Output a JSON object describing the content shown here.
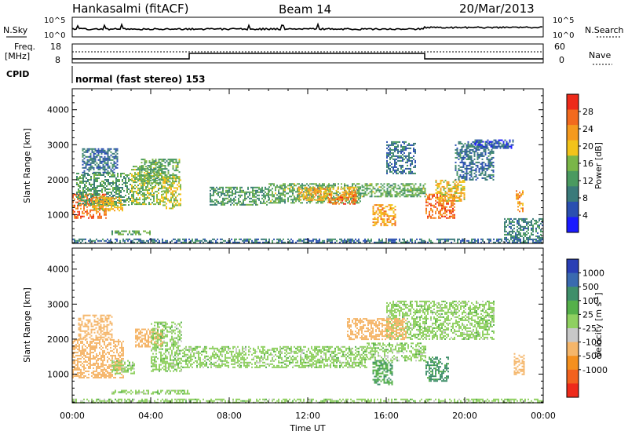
{
  "header": {
    "station": "Hankasalmi (fitACF)",
    "beam": "Beam 14",
    "date": "20/Mar/2013"
  },
  "noise_panel": {
    "left_label": "N.Sky",
    "left_ticks": [
      "10^5",
      "10^0"
    ],
    "right_label": "N.Search",
    "right_ticks": [
      "10^5",
      "10^0"
    ]
  },
  "freq_panel": {
    "left_label_line1": "Freq.",
    "left_label_line2": "[MHz]",
    "left_ticks": [
      "18",
      "8"
    ],
    "right_label": "Nave",
    "right_ticks": [
      "60",
      "0"
    ]
  },
  "cpid": {
    "label": "CPID",
    "mode": "normal (fast stereo) 153"
  },
  "power_colorbar": {
    "label": "Power [dB]",
    "ticks": [
      "4",
      "8",
      "12",
      "16",
      "20",
      "24",
      "28"
    ],
    "colors": [
      "#1a1aff",
      "#2a4fb0",
      "#3a7a7a",
      "#4a9a60",
      "#7ab648",
      "#f2c31a",
      "#f59a1e",
      "#f26a1e",
      "#ee2a1a"
    ]
  },
  "velocity_colorbar": {
    "label_main": "Velocity  [m s",
    "label_sup": "-1",
    "label_end": "]",
    "ticks": [
      "1000",
      "500",
      "100",
      "25",
      "-25",
      "-100",
      "-500",
      "-1000"
    ],
    "colors": [
      "#2a3fb5",
      "#3a6ab0",
      "#3f8f6a",
      "#55b04a",
      "#8fd060",
      "#c8c8c8",
      "#f5b66a",
      "#f5901e",
      "#f2621e",
      "#ee2a1a"
    ]
  },
  "y_axis": {
    "label": "Slant Range [km]",
    "ticks": [
      "1000",
      "2000",
      "3000",
      "4000"
    ]
  },
  "x_axis": {
    "label": "Time UT",
    "ticks": [
      "00:00",
      "04:00",
      "08:00",
      "12:00",
      "16:00",
      "20:00",
      "00:00"
    ]
  },
  "chart_data": [
    {
      "type": "heatmap",
      "title": "Power [dB]",
      "xlabel": "Time UT",
      "ylabel": "Slant Range [km]",
      "xlim": [
        0,
        24
      ],
      "ylim": [
        180,
        4600
      ],
      "color_scale": [
        0,
        32
      ],
      "regions": [
        {
          "t0": 0.0,
          "t1": 1.7,
          "r0": 900,
          "r1": 1600,
          "v": 26
        },
        {
          "t0": 0.2,
          "t1": 3.0,
          "r0": 1300,
          "r1": 2200,
          "v": 12
        },
        {
          "t0": 0.5,
          "t1": 2.3,
          "r0": 2200,
          "r1": 2900,
          "v": 8
        },
        {
          "t0": 1.0,
          "t1": 2.6,
          "r0": 1100,
          "r1": 1500,
          "v": 20
        },
        {
          "t0": 3.0,
          "t1": 4.6,
          "r0": 1300,
          "r1": 2400,
          "v": 16
        },
        {
          "t0": 3.5,
          "t1": 5.5,
          "r0": 1900,
          "r1": 2600,
          "v": 14
        },
        {
          "t0": 4.6,
          "t1": 5.5,
          "r0": 1200,
          "r1": 2100,
          "v": 18
        },
        {
          "t0": 7.0,
          "t1": 10.0,
          "r0": 1300,
          "r1": 1800,
          "v": 12
        },
        {
          "t0": 10.0,
          "t1": 14.7,
          "r0": 1350,
          "r1": 1900,
          "v": 14
        },
        {
          "t0": 11.5,
          "t1": 14.5,
          "r0": 1400,
          "r1": 1800,
          "v": 22
        },
        {
          "t0": 13.0,
          "t1": 14.5,
          "r0": 1300,
          "r1": 1600,
          "v": 26
        },
        {
          "t0": 14.5,
          "t1": 18.0,
          "r0": 1500,
          "r1": 1900,
          "v": 14
        },
        {
          "t0": 15.3,
          "t1": 16.5,
          "r0": 700,
          "r1": 1300,
          "v": 22
        },
        {
          "t0": 16.0,
          "t1": 17.5,
          "r0": 2200,
          "r1": 3100,
          "v": 8
        },
        {
          "t0": 18.0,
          "t1": 19.5,
          "r0": 900,
          "r1": 1600,
          "v": 26
        },
        {
          "t0": 18.5,
          "t1": 20.0,
          "r0": 1400,
          "r1": 2000,
          "v": 20
        },
        {
          "t0": 19.5,
          "t1": 21.5,
          "r0": 2000,
          "r1": 3100,
          "v": 8
        },
        {
          "t0": 20.5,
          "t1": 22.5,
          "r0": 2900,
          "r1": 3150,
          "v": 6
        },
        {
          "t0": 22.6,
          "t1": 23.0,
          "r0": 1100,
          "r1": 1700,
          "v": 24
        },
        {
          "t0": 22.0,
          "t1": 24.0,
          "r0": 300,
          "r1": 900,
          "v": 10
        },
        {
          "t0": 0.0,
          "t1": 24.0,
          "r0": 200,
          "r1": 320,
          "v": 8
        },
        {
          "t0": 2.0,
          "t1": 4.0,
          "r0": 450,
          "r1": 550,
          "v": 14
        }
      ]
    },
    {
      "type": "heatmap",
      "title": "Velocity [m s-1]",
      "xlabel": "Time UT",
      "ylabel": "Slant Range [km]",
      "xlim": [
        0,
        24
      ],
      "ylim": [
        180,
        4600
      ],
      "color_scale": [
        -1000,
        1000
      ],
      "regions": [
        {
          "t0": 0.0,
          "t1": 2.6,
          "r0": 900,
          "r1": 2000,
          "v": -180
        },
        {
          "t0": 0.3,
          "t1": 2.0,
          "r0": 2000,
          "r1": 2700,
          "v": -250
        },
        {
          "t0": 2.0,
          "t1": 3.2,
          "r0": 1000,
          "r1": 1400,
          "v": 0
        },
        {
          "t0": 3.2,
          "t1": 4.6,
          "r0": 1800,
          "r1": 2300,
          "v": -200
        },
        {
          "t0": 4.0,
          "t1": 5.6,
          "r0": 1100,
          "r1": 2500,
          "v": 0
        },
        {
          "t0": 5.6,
          "t1": 15.0,
          "r0": 1200,
          "r1": 1800,
          "v": 0
        },
        {
          "t0": 15.0,
          "t1": 18.0,
          "r0": 1400,
          "r1": 1900,
          "v": 0
        },
        {
          "t0": 15.3,
          "t1": 16.3,
          "r0": 700,
          "r1": 1400,
          "v": 90
        },
        {
          "t0": 18.0,
          "t1": 19.2,
          "r0": 800,
          "r1": 1500,
          "v": 110
        },
        {
          "t0": 16.0,
          "t1": 21.5,
          "r0": 2000,
          "r1": 3100,
          "v": 0
        },
        {
          "t0": 14.0,
          "t1": 17.0,
          "r0": 2000,
          "r1": 2600,
          "v": -150
        },
        {
          "t0": 22.5,
          "t1": 23.0,
          "r0": 1000,
          "r1": 1600,
          "v": -200
        },
        {
          "t0": 0.0,
          "t1": 24.0,
          "r0": 200,
          "r1": 300,
          "v": 0
        },
        {
          "t0": 2.0,
          "t1": 6.0,
          "r0": 450,
          "r1": 550,
          "v": 0
        }
      ]
    }
  ]
}
